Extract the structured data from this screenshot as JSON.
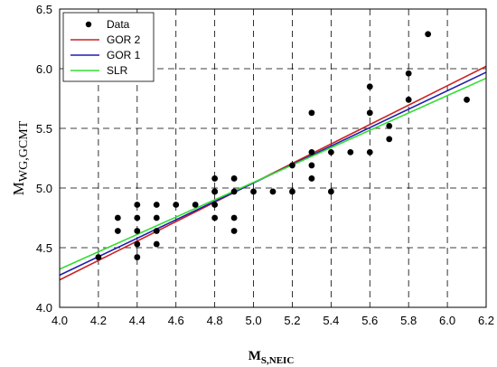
{
  "chart_data": {
    "type": "scatter",
    "xlabel": {
      "main": "M",
      "sub": "S,NEIC"
    },
    "ylabel": {
      "main": "M",
      "sub": "WG,GCMT"
    },
    "xlim": [
      4.0,
      6.2
    ],
    "ylim": [
      4.0,
      6.5
    ],
    "x_ticks": [
      "4.0",
      "4.2",
      "4.4",
      "4.6",
      "4.8",
      "5.0",
      "5.2",
      "5.4",
      "5.6",
      "5.8",
      "6.0",
      "6.2"
    ],
    "y_ticks": [
      "4.0",
      "4.5",
      "5.0",
      "5.5",
      "6.0",
      "6.5"
    ],
    "grid": true,
    "legend_position": "top-left",
    "points": {
      "name": "Data",
      "color": "#000000",
      "x": [
        4.2,
        4.3,
        4.3,
        4.4,
        4.4,
        4.4,
        4.4,
        4.4,
        4.5,
        4.5,
        4.5,
        4.5,
        4.6,
        4.7,
        4.8,
        4.8,
        4.8,
        4.8,
        4.8,
        4.9,
        4.9,
        4.9,
        4.9,
        5.0,
        5.1,
        5.2,
        5.2,
        5.3,
        5.3,
        5.3,
        5.3,
        5.4,
        5.4,
        5.5,
        5.6,
        5.6,
        5.6,
        5.7,
        5.7,
        5.8,
        5.8,
        5.9,
        6.1
      ],
      "y": [
        4.42,
        4.64,
        4.75,
        4.42,
        4.53,
        4.75,
        4.86,
        4.64,
        4.53,
        4.64,
        4.75,
        4.86,
        4.86,
        4.86,
        4.75,
        4.86,
        4.97,
        5.08,
        4.97,
        4.64,
        4.75,
        4.97,
        5.08,
        4.97,
        4.97,
        4.97,
        5.19,
        5.08,
        5.19,
        5.3,
        5.63,
        4.97,
        5.3,
        5.3,
        5.3,
        5.63,
        5.85,
        5.41,
        5.52,
        5.74,
        5.96,
        6.29,
        5.74
      ]
    },
    "lines": [
      {
        "name": "GOR 2",
        "color": "#cc2222",
        "x": [
          4.0,
          6.2
        ],
        "y": [
          4.23,
          6.02
        ]
      },
      {
        "name": "GOR 1",
        "color": "#1f1fb0",
        "x": [
          4.0,
          6.2
        ],
        "y": [
          4.27,
          5.97
        ]
      },
      {
        "name": "SLR",
        "color": "#33dd33",
        "x": [
          4.0,
          6.2
        ],
        "y": [
          4.32,
          5.92
        ]
      }
    ]
  }
}
